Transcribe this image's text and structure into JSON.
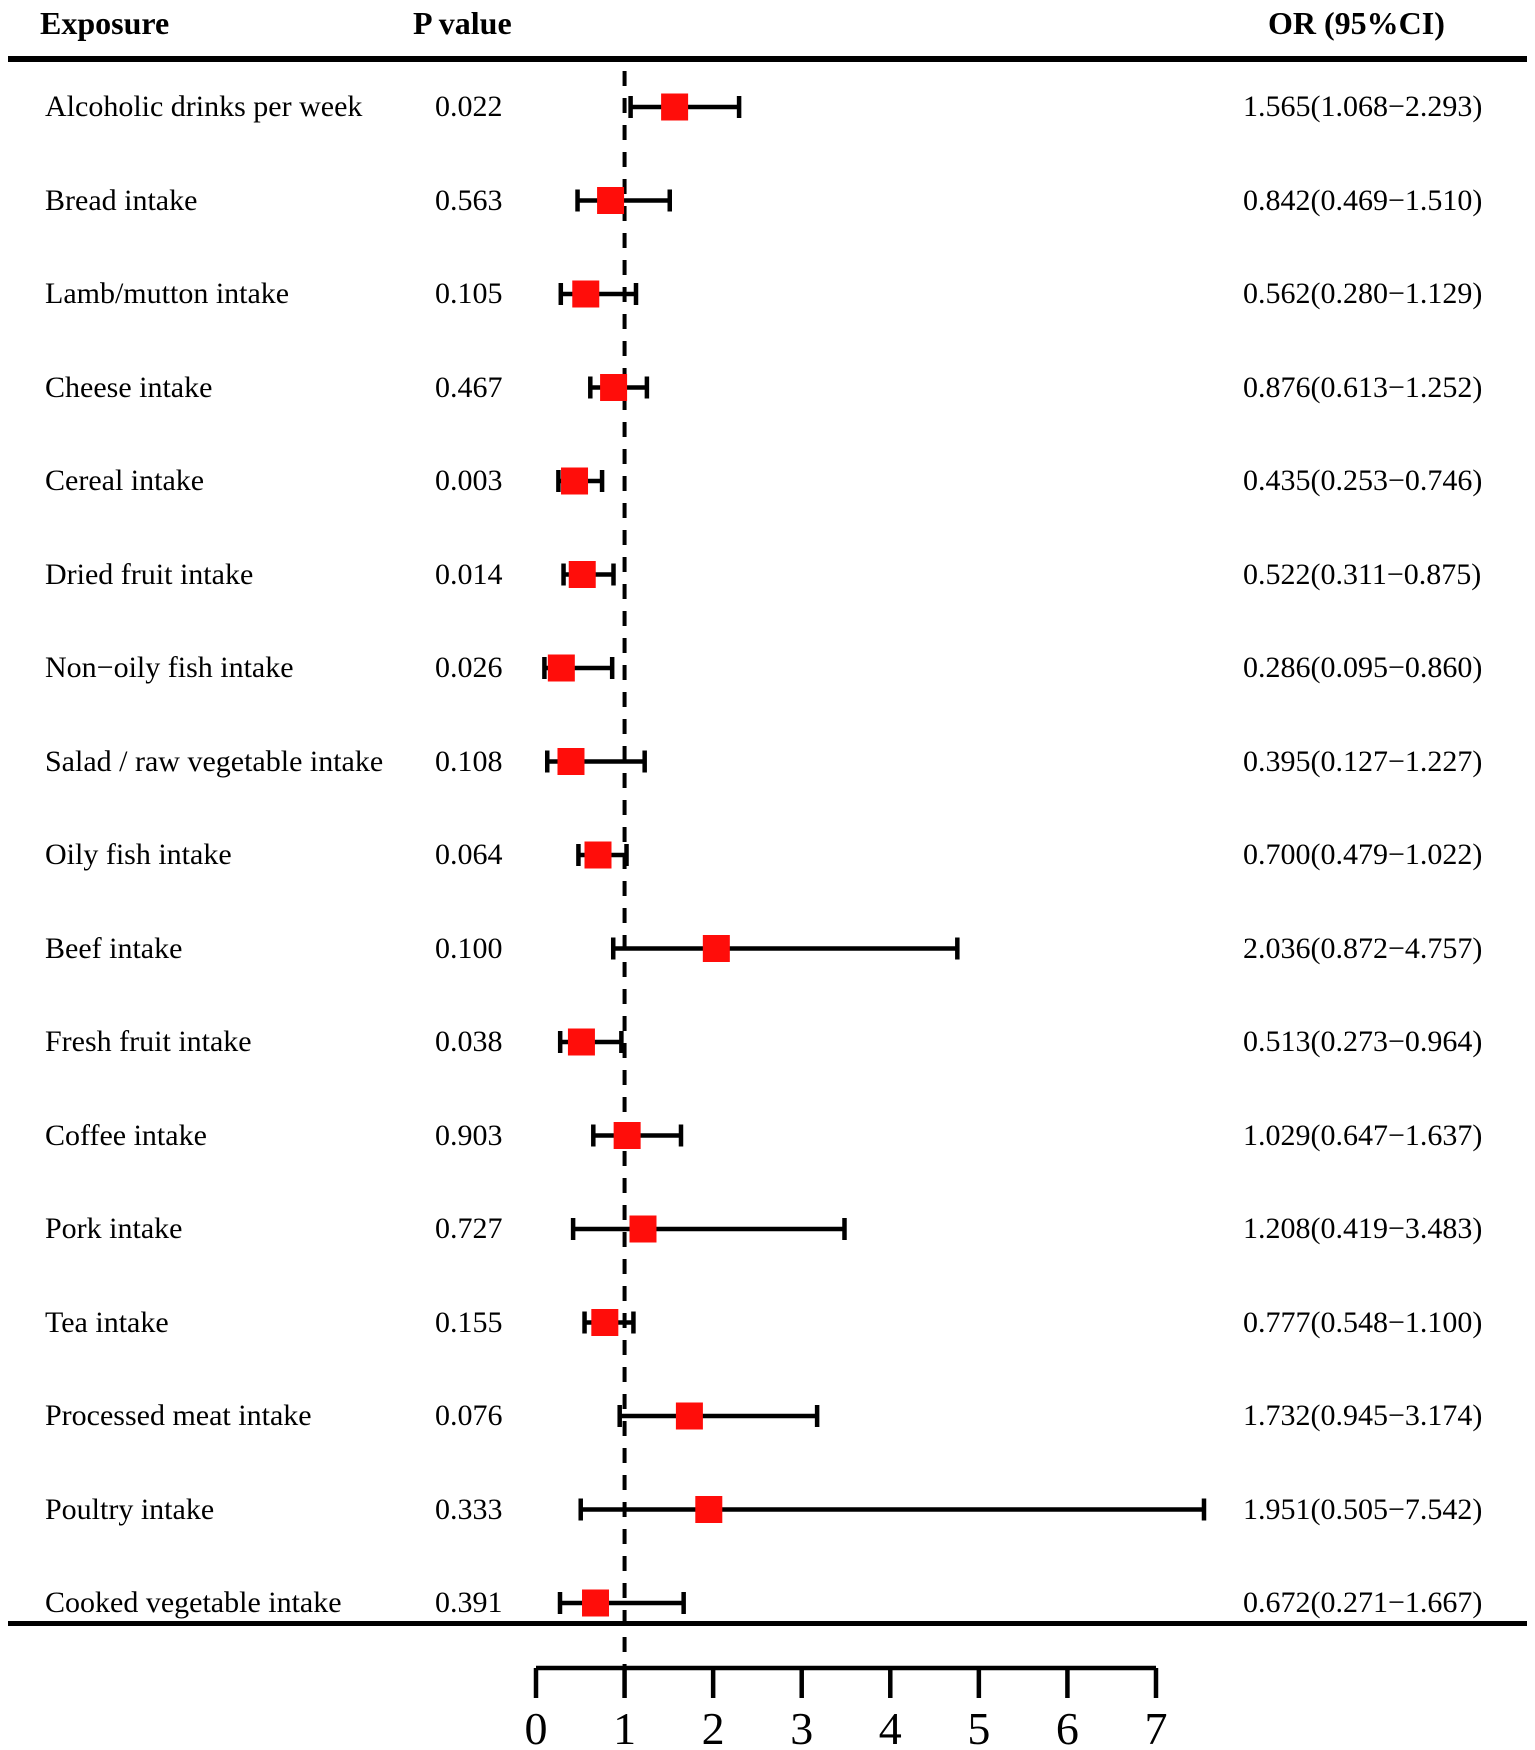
{
  "figure": {
    "header": {
      "exposure": "Exposure",
      "p_value": "P value",
      "or_ci": "OR (95%CI)"
    }
  },
  "colors": {
    "marker": "#ff0d0a",
    "line": "#000000",
    "text": "#000000",
    "background": "#ffffff"
  },
  "chart_data": {
    "type": "forest",
    "columns": [
      "Exposure",
      "P value",
      "OR (95%CI)"
    ],
    "x_axis": {
      "min": 0,
      "max": 7,
      "ticks": [
        0,
        1,
        2,
        3,
        4,
        5,
        6,
        7
      ],
      "reference_line": 1,
      "grid": false
    },
    "marker_shape": "square",
    "rows": [
      {
        "exposure": "Alcoholic drinks per week",
        "p_value": "0.022",
        "or": 1.565,
        "ci_low": 1.068,
        "ci_high": 2.293,
        "or_ci_text": "1.565(1.068−2.293)"
      },
      {
        "exposure": "Bread intake",
        "p_value": "0.563",
        "or": 0.842,
        "ci_low": 0.469,
        "ci_high": 1.51,
        "or_ci_text": "0.842(0.469−1.510)"
      },
      {
        "exposure": "Lamb/mutton intake",
        "p_value": "0.105",
        "or": 0.562,
        "ci_low": 0.28,
        "ci_high": 1.129,
        "or_ci_text": "0.562(0.280−1.129)"
      },
      {
        "exposure": "Cheese intake",
        "p_value": "0.467",
        "or": 0.876,
        "ci_low": 0.613,
        "ci_high": 1.252,
        "or_ci_text": "0.876(0.613−1.252)"
      },
      {
        "exposure": "Cereal intake",
        "p_value": "0.003",
        "or": 0.435,
        "ci_low": 0.253,
        "ci_high": 0.746,
        "or_ci_text": "0.435(0.253−0.746)"
      },
      {
        "exposure": "Dried fruit intake",
        "p_value": "0.014",
        "or": 0.522,
        "ci_low": 0.311,
        "ci_high": 0.875,
        "or_ci_text": "0.522(0.311−0.875)"
      },
      {
        "exposure": "Non−oily fish intake",
        "p_value": "0.026",
        "or": 0.286,
        "ci_low": 0.095,
        "ci_high": 0.86,
        "or_ci_text": "0.286(0.095−0.860)"
      },
      {
        "exposure": "Salad / raw vegetable intake",
        "p_value": "0.108",
        "or": 0.395,
        "ci_low": 0.127,
        "ci_high": 1.227,
        "or_ci_text": "0.395(0.127−1.227)"
      },
      {
        "exposure": "Oily fish intake",
        "p_value": "0.064",
        "or": 0.7,
        "ci_low": 0.479,
        "ci_high": 1.022,
        "or_ci_text": "0.700(0.479−1.022)"
      },
      {
        "exposure": "Beef intake",
        "p_value": "0.100",
        "or": 2.036,
        "ci_low": 0.872,
        "ci_high": 4.757,
        "or_ci_text": "2.036(0.872−4.757)"
      },
      {
        "exposure": "Fresh fruit intake",
        "p_value": "0.038",
        "or": 0.513,
        "ci_low": 0.273,
        "ci_high": 0.964,
        "or_ci_text": "0.513(0.273−0.964)"
      },
      {
        "exposure": "Coffee intake",
        "p_value": "0.903",
        "or": 1.029,
        "ci_low": 0.647,
        "ci_high": 1.637,
        "or_ci_text": "1.029(0.647−1.637)"
      },
      {
        "exposure": "Pork intake",
        "p_value": "0.727",
        "or": 1.208,
        "ci_low": 0.419,
        "ci_high": 3.483,
        "or_ci_text": "1.208(0.419−3.483)"
      },
      {
        "exposure": "Tea intake",
        "p_value": "0.155",
        "or": 0.777,
        "ci_low": 0.548,
        "ci_high": 1.1,
        "or_ci_text": "0.777(0.548−1.100)"
      },
      {
        "exposure": "Processed meat intake",
        "p_value": "0.076",
        "or": 1.732,
        "ci_low": 0.945,
        "ci_high": 3.174,
        "or_ci_text": "1.732(0.945−3.174)"
      },
      {
        "exposure": "Poultry intake",
        "p_value": "0.333",
        "or": 1.951,
        "ci_low": 0.505,
        "ci_high": 7.542,
        "or_ci_text": "1.951(0.505−7.542)"
      },
      {
        "exposure": "Cooked vegetable intake",
        "p_value": "0.391",
        "or": 0.672,
        "ci_low": 0.271,
        "ci_high": 1.667,
        "or_ci_text": "0.672(0.271−1.667)"
      }
    ]
  }
}
